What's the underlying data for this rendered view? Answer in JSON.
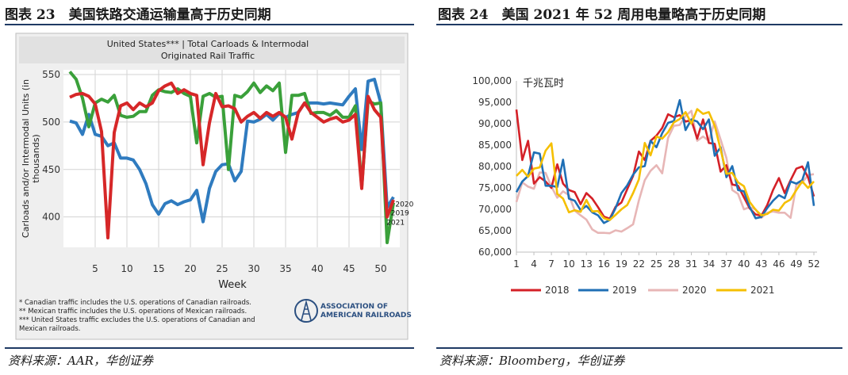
{
  "left_panel": {
    "figure_title": "图表 23　美国铁路交通运输量高于历史同期",
    "source": "资料来源：AAR，华创证券",
    "footnotes": [
      "* Canadian traffic includes the U.S. operations of Canadian railroads.",
      "** Mexican traffic includes the U.S. operations of Mexican railroads.",
      "*** United States traffic excludes the U.S. operations of Canadian and",
      "Mexican railroads."
    ],
    "logo_lines": [
      "ASSOCIATION OF",
      "AMERICAN RAILROADS"
    ],
    "colors": {
      "s2019": "#2f7bbf",
      "s2020": "#3aa03a",
      "s2021": "#d62728",
      "header_bg": "#e1e1e1",
      "frame_bg": "#efefef"
    }
  },
  "right_panel": {
    "figure_title": "图表 24　美国 2021 年 52 周用电量略高于历史同期",
    "source": "资料来源：Bloomberg，华创证券",
    "colors": {
      "s2018": "#d42027",
      "s2019": "#1f6fb5",
      "s2020": "#e7b6b6",
      "s2021": "#f5bf00"
    }
  },
  "chart_data": [
    {
      "type": "line",
      "title": "United States*** | Total Carloads & Intermodal",
      "subtitle": "Originated Rail Traffic",
      "xlabel": "Week",
      "ylabel": "Carloads and/or Intermodal Units (in thousands)",
      "xlim": [
        0,
        53
      ],
      "ylim": [
        368,
        555
      ],
      "xticks": [
        5,
        10,
        15,
        20,
        25,
        30,
        35,
        40,
        45,
        50
      ],
      "yticks": [
        400,
        450,
        500,
        550
      ],
      "grid": true,
      "annotations": [
        {
          "text": "2020",
          "x": 52.3,
          "y": 411
        },
        {
          "text": "2019",
          "x": 51.6,
          "y": 402
        },
        {
          "text": "2021",
          "x": 50.9,
          "y": 392
        }
      ],
      "series": [
        {
          "name": "2019",
          "x": [
            1,
            2,
            3,
            4,
            5,
            6,
            7,
            8,
            9,
            10,
            11,
            12,
            13,
            14,
            15,
            16,
            17,
            18,
            19,
            20,
            21,
            22,
            23,
            24,
            25,
            26,
            27,
            28,
            29,
            30,
            31,
            32,
            33,
            34,
            35,
            36,
            37,
            38,
            39,
            40,
            41,
            42,
            43,
            44,
            45,
            46,
            47,
            48,
            49,
            50,
            51,
            52
          ],
          "values": [
            501,
            499,
            487,
            508,
            487,
            485,
            475,
            478,
            462,
            462,
            460,
            450,
            435,
            413,
            403,
            414,
            417,
            413,
            416,
            418,
            428,
            395,
            430,
            448,
            455,
            456,
            438,
            448,
            501,
            500,
            503,
            508,
            502,
            509,
            505,
            508,
            510,
            520,
            520,
            520,
            519,
            520,
            519,
            518,
            527,
            535,
            471,
            543,
            545,
            520,
            410,
            421
          ]
        },
        {
          "name": "2020",
          "x": [
            1,
            2,
            3,
            4,
            5,
            6,
            7,
            8,
            9,
            10,
            11,
            12,
            13,
            14,
            15,
            16,
            17,
            18,
            19,
            20,
            21,
            22,
            23,
            24,
            25,
            26,
            27,
            28,
            29,
            30,
            31,
            32,
            33,
            34,
            35,
            36,
            37,
            38,
            39,
            40,
            41,
            42,
            43,
            44,
            45,
            46,
            47,
            48,
            49,
            50,
            51,
            52
          ],
          "values": [
            553,
            545,
            525,
            495,
            520,
            524,
            521,
            528,
            507,
            505,
            506,
            511,
            511,
            528,
            534,
            532,
            531,
            535,
            530,
            527,
            478,
            527,
            530,
            526,
            527,
            450,
            528,
            526,
            532,
            541,
            531,
            538,
            533,
            541,
            468,
            528,
            528,
            530,
            509,
            510,
            510,
            507,
            512,
            505,
            505,
            517,
            432,
            522,
            519,
            520,
            373,
            415
          ]
        },
        {
          "name": "2021",
          "x": [
            1,
            2,
            3,
            4,
            5,
            6,
            7,
            8,
            9,
            10,
            11,
            12,
            13,
            14,
            15,
            16,
            17,
            18,
            19,
            20,
            21,
            22,
            23,
            24,
            25,
            26,
            27,
            28,
            29,
            30,
            31,
            32,
            33,
            34,
            35,
            36,
            37,
            38,
            39,
            40,
            41,
            42,
            43,
            44,
            45,
            46,
            47,
            48,
            49,
            50,
            51,
            52
          ],
          "values": [
            526,
            529,
            530,
            527,
            519,
            490,
            378,
            489,
            517,
            520,
            513,
            520,
            516,
            520,
            533,
            538,
            541,
            530,
            534,
            530,
            528,
            455,
            499,
            530,
            516,
            517,
            514,
            500,
            506,
            510,
            504,
            510,
            506,
            510,
            505,
            482,
            510,
            520,
            510,
            505,
            500,
            503,
            505,
            500,
            502,
            508,
            430,
            527,
            513,
            505,
            400,
            418
          ]
        }
      ]
    },
    {
      "type": "line",
      "title": "",
      "ylabel": "千兆瓦时",
      "xlabel": "",
      "xlim": [
        1,
        52
      ],
      "ylim": [
        60000,
        100000
      ],
      "xticks": [
        1,
        4,
        7,
        10,
        13,
        16,
        19,
        22,
        25,
        28,
        31,
        34,
        37,
        40,
        43,
        46,
        49,
        52
      ],
      "yticks": [
        60000,
        65000,
        70000,
        75000,
        80000,
        85000,
        90000,
        95000,
        100000
      ],
      "ytick_labels": [
        "60,000",
        "65,000",
        "70,000",
        "75,000",
        "80,000",
        "85,000",
        "90,000",
        "95,000",
        "100,000"
      ],
      "legend": {
        "position": "bottom",
        "entries": [
          "2018",
          "2019",
          "2020",
          "2021"
        ]
      },
      "series": [
        {
          "name": "2018",
          "x": [
            1,
            2,
            3,
            4,
            5,
            6,
            7,
            8,
            9,
            10,
            11,
            12,
            13,
            14,
            15,
            16,
            17,
            18,
            19,
            20,
            21,
            22,
            23,
            24,
            25,
            26,
            27,
            28,
            29,
            30,
            31,
            32,
            33,
            34,
            35,
            36,
            37,
            38,
            39,
            40,
            41,
            42,
            43,
            44,
            45,
            46,
            47,
            48,
            49,
            50,
            51,
            52
          ],
          "values": [
            93300,
            81500,
            86000,
            76000,
            77500,
            76500,
            75000,
            80500,
            76000,
            74500,
            74000,
            71200,
            73800,
            72500,
            70500,
            68300,
            67800,
            70600,
            71600,
            74700,
            77800,
            83500,
            81500,
            86000,
            87200,
            89000,
            92200,
            91500,
            92000,
            90500,
            90800,
            86500,
            91000,
            85500,
            85300,
            78800,
            80300,
            75800,
            75500,
            72800,
            70200,
            68800,
            68500,
            71000,
            74500,
            77300,
            73800,
            76800,
            79500,
            80000,
            77500,
            73000
          ]
        },
        {
          "name": "2019",
          "x": [
            1,
            2,
            3,
            4,
            5,
            6,
            7,
            8,
            9,
            10,
            11,
            12,
            13,
            14,
            15,
            16,
            17,
            18,
            19,
            20,
            21,
            22,
            23,
            24,
            25,
            26,
            27,
            28,
            29,
            30,
            31,
            32,
            33,
            34,
            35,
            36,
            37,
            38,
            39,
            40,
            41,
            42,
            43,
            44,
            45,
            46,
            47,
            48,
            49,
            50,
            51,
            52
          ],
          "values": [
            74000,
            76500,
            77800,
            83300,
            83000,
            75500,
            75500,
            75200,
            81600,
            72500,
            72000,
            69800,
            70800,
            69300,
            68600,
            66800,
            67500,
            70300,
            73800,
            75600,
            78100,
            79800,
            80100,
            86000,
            84500,
            87800,
            90200,
            90600,
            95500,
            88500,
            91000,
            90500,
            88700,
            91000,
            82500,
            84500,
            77500,
            80100,
            74500,
            74200,
            70500,
            67900,
            68200,
            70300,
            72000,
            73300,
            72600,
            76500,
            76000,
            76800,
            81000,
            70800
          ]
        },
        {
          "name": "2020",
          "x": [
            1,
            2,
            3,
            4,
            5,
            6,
            7,
            8,
            9,
            10,
            11,
            12,
            13,
            14,
            15,
            16,
            17,
            18,
            19,
            20,
            21,
            22,
            23,
            24,
            25,
            26,
            27,
            28,
            29,
            30,
            31,
            32,
            33,
            34,
            35,
            36,
            37,
            38,
            39,
            40,
            41,
            42,
            43,
            44,
            45,
            46,
            47,
            48,
            49,
            50,
            51,
            52
          ],
          "values": [
            71700,
            76300,
            75300,
            74800,
            78600,
            78500,
            75300,
            72700,
            74200,
            73300,
            69700,
            68600,
            67600,
            65300,
            64500,
            64500,
            64400,
            65100,
            64800,
            65600,
            66500,
            72100,
            76800,
            79000,
            80300,
            78400,
            86700,
            89500,
            89700,
            91800,
            93000,
            86000,
            87000,
            86000,
            90500,
            86300,
            82000,
            74500,
            73600,
            70000,
            70500,
            70000,
            68000,
            69200,
            69500,
            69200,
            69200,
            68000,
            75700,
            76200,
            78000,
            78200
          ]
        },
        {
          "name": "2021",
          "x": [
            1,
            2,
            3,
            4,
            5,
            6,
            7,
            8,
            9,
            10,
            11,
            12,
            13,
            14,
            15,
            16,
            17,
            18,
            19,
            20,
            21,
            22,
            23,
            24,
            25,
            26,
            27,
            28,
            29,
            30,
            31,
            32,
            33,
            34,
            35,
            36,
            37,
            38,
            39,
            40,
            41,
            42,
            43,
            44,
            45,
            46,
            47,
            48,
            49,
            50,
            51,
            52
          ],
          "values": [
            77800,
            79200,
            77600,
            79500,
            79800,
            83700,
            85400,
            73600,
            72500,
            69300,
            69800,
            69400,
            72200,
            69500,
            69600,
            67900,
            67500,
            68700,
            70000,
            71000,
            73800,
            77000,
            85500,
            82600,
            87000,
            86500,
            88000,
            90300,
            91100,
            92700,
            90000,
            93400,
            92300,
            92700,
            89500,
            84000,
            78300,
            78500,
            76300,
            75400,
            71700,
            69900,
            68600,
            68900,
            69900,
            69700,
            71500,
            72300,
            74500,
            76500,
            75000,
            76500
          ]
        }
      ]
    }
  ]
}
